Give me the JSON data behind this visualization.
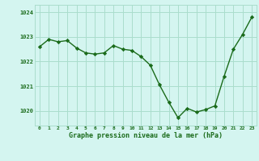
{
  "x": [
    0,
    1,
    2,
    3,
    4,
    5,
    6,
    7,
    8,
    9,
    10,
    11,
    12,
    13,
    14,
    15,
    16,
    17,
    18,
    19,
    20,
    21,
    22,
    23
  ],
  "y": [
    1022.6,
    1022.9,
    1022.8,
    1022.85,
    1022.55,
    1022.35,
    1022.3,
    1022.35,
    1022.65,
    1022.5,
    1022.45,
    1022.2,
    1021.85,
    1021.05,
    1020.35,
    1019.72,
    1020.1,
    1019.95,
    1020.05,
    1020.2,
    1021.4,
    1022.5,
    1023.1,
    1023.8
  ],
  "line_color": "#1a6b1a",
  "marker_color": "#1a6b1a",
  "bg_color": "#d4f5f0",
  "grid_color": "#aaddcc",
  "xlabel": "Graphe pression niveau de la mer (hPa)",
  "xlabel_color": "#1a6b1a",
  "tick_color": "#1a6b1a",
  "ylim": [
    1019.4,
    1024.3
  ],
  "yticks": [
    1020,
    1021,
    1022,
    1023,
    1024
  ],
  "xticks": [
    0,
    1,
    2,
    3,
    4,
    5,
    6,
    7,
    8,
    9,
    10,
    11,
    12,
    13,
    14,
    15,
    16,
    17,
    18,
    19,
    20,
    21,
    22,
    23
  ],
  "figsize": [
    3.2,
    2.0
  ],
  "dpi": 100
}
